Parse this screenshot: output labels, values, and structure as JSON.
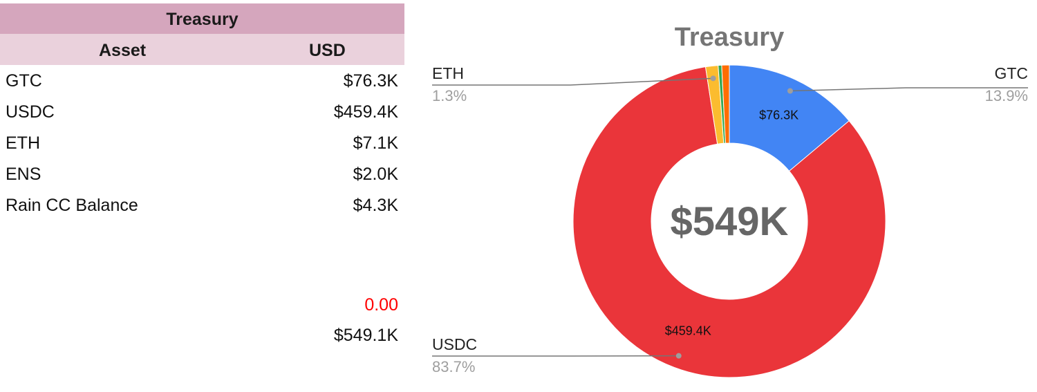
{
  "table": {
    "title": "Treasury",
    "headers": {
      "asset": "Asset",
      "usd": "USD"
    },
    "rows": [
      {
        "asset": "GTC",
        "usd": "$76.3K"
      },
      {
        "asset": "USDC",
        "usd": "$459.4K"
      },
      {
        "asset": "ETH",
        "usd": "$7.1K"
      },
      {
        "asset": "ENS",
        "usd": "$2.0K"
      },
      {
        "asset": "Rain CC Balance",
        "usd": "$4.3K"
      }
    ],
    "check_value": "0.00",
    "total": "$549.1K"
  },
  "colors": {
    "title_bg": "#d5a6bd",
    "header_bg": "#ead1dc",
    "check_text": "#ff0000"
  },
  "chart_data": {
    "type": "pie",
    "variant": "donut",
    "title": "Treasury",
    "center_label": "$549K",
    "slices": [
      {
        "name": "GTC",
        "value": 76.3,
        "value_label": "$76.3K",
        "percent_label": "13.9%",
        "color": "#4285f4"
      },
      {
        "name": "USDC",
        "value": 459.4,
        "value_label": "$459.4K",
        "percent_label": "83.7%",
        "color": "#ea353a"
      },
      {
        "name": "ETH",
        "value": 7.1,
        "value_label": "",
        "percent_label": "1.3%",
        "color": "#fbbc2f"
      },
      {
        "name": "ENS",
        "value": 2.0,
        "value_label": "",
        "percent_label": "",
        "color": "#34a853"
      },
      {
        "name": "Rain CC Balance",
        "value": 4.3,
        "value_label": "",
        "percent_label": "",
        "color": "#ff6d01"
      }
    ],
    "callouts": [
      "ETH",
      "GTC",
      "USDC"
    ]
  }
}
